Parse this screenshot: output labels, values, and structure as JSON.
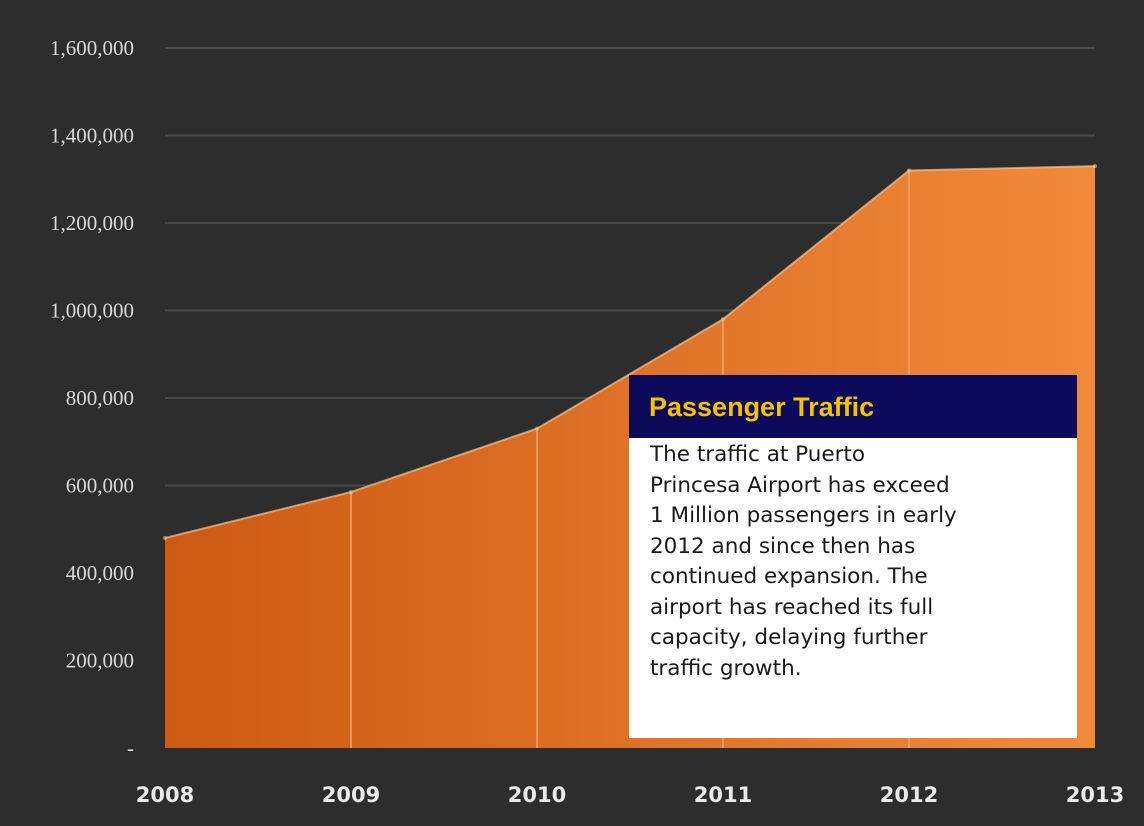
{
  "chart_data": {
    "type": "area",
    "categories": [
      "2008",
      "2009",
      "2010",
      "2011",
      "2012",
      "2013"
    ],
    "series": [
      {
        "values": [
          480000,
          585000,
          730000,
          980000,
          1320000,
          1330000
        ]
      }
    ],
    "ylim": [
      0,
      1600000
    ],
    "yticks": [
      0,
      200000,
      400000,
      600000,
      800000,
      1000000,
      1200000,
      1400000,
      1600000
    ],
    "ytick_labels": [
      "-",
      "200,000",
      "400,000",
      "600,000",
      "800,000",
      "1,000,000",
      "1,200,000",
      "1,400,000",
      "1,600,000"
    ],
    "grid": true,
    "colors": {
      "background": "#2d2d2d",
      "area_dark": "#cd5a12",
      "area_light": "#f08a3a",
      "gridline": "#4a4a4a",
      "edge": "#f7c49a"
    }
  },
  "callout": {
    "title": "Passenger Traffic",
    "lines": [
      "The traffic at Puerto",
      "Princesa Airport has exceed",
      "1 Million passengers in early",
      "2012 and since then has",
      "continued expansion.  The",
      "airport has reached its full",
      "capacity, delaying further",
      "traffic growth."
    ],
    "colors": {
      "header_bg": "#0d0a5c",
      "title": "#f5c200"
    }
  }
}
